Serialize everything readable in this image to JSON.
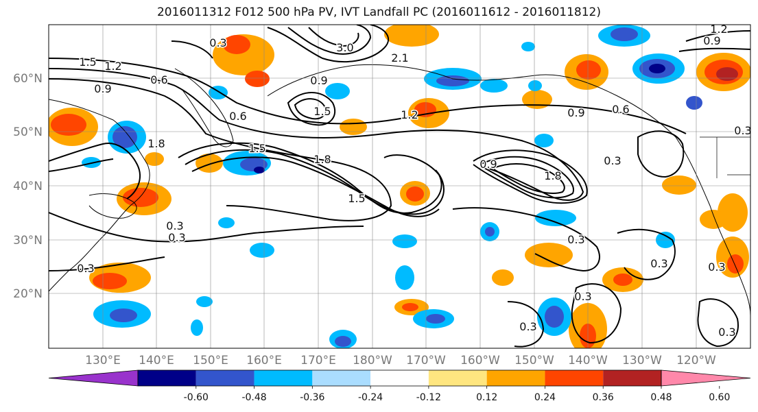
{
  "title": "2016011312 F012 500 hPa PV, IVT Landfall PC (2016011612 - 2016011812)",
  "latitude_labels": [
    "60°N",
    "50°N",
    "40°N",
    "30°N",
    "20°N"
  ],
  "longitude_labels": [
    "130°E",
    "140°E",
    "150°E",
    "160°E",
    "170°E",
    "180°W",
    "170°W",
    "160°W",
    "150°W",
    "140°W",
    "130°W",
    "120°W"
  ],
  "colorbar": {
    "colors": [
      "#9933cc",
      "#000088",
      "#3355cc",
      "#00bbff",
      "#aaddff",
      "#ffffff",
      "#ffe680",
      "#ffa500",
      "#ff4500",
      "#b22222",
      "#ff88aa"
    ],
    "labels": [
      "-0.60",
      "-0.48",
      "-0.36",
      "-0.24",
      "-0.12",
      "0.12",
      "0.24",
      "0.36",
      "0.48",
      "0.60"
    ]
  },
  "contour_labels": [
    "0.3",
    "1.2",
    "1.5",
    "0.9",
    "0.6",
    "1.8",
    "3.0",
    "2.1",
    "1.5",
    "0.6",
    "0.9",
    "1.2",
    "0.3",
    "0.3",
    "1.5",
    "1.8",
    "0.9",
    "1.5",
    "1.8",
    "0.9",
    "0.6",
    "0.3",
    "0.3",
    "0.3",
    "0.3",
    "0.3",
    "0.3",
    "0.3",
    "0.3",
    "1.2",
    "0.9",
    "0.3"
  ]
}
